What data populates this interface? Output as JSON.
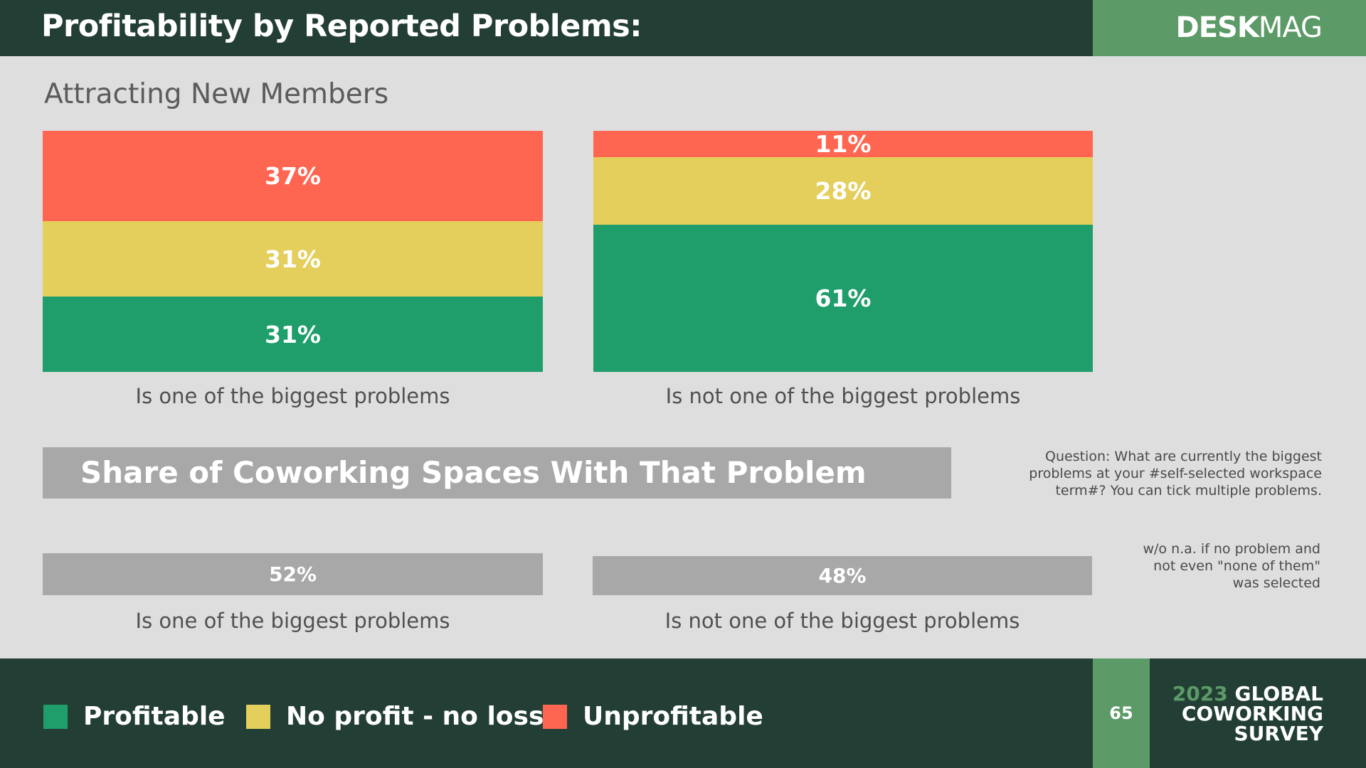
{
  "header": {
    "title": "Profitability by Reported Problems:",
    "brand_bold": "DESK",
    "brand_light": "MAG"
  },
  "section_title": "Attracting New Members",
  "chart_data": [
    {
      "type": "bar",
      "stacked": true,
      "categories": [
        "Is one of the biggest problems",
        "Is not one of the biggest problems"
      ],
      "series": [
        {
          "name": "Profitable",
          "values": [
            31,
            61
          ],
          "labels": [
            "31%",
            "61%"
          ]
        },
        {
          "name": "No profit - no loss",
          "values": [
            31,
            28
          ],
          "labels": [
            "31%",
            "28%"
          ]
        },
        {
          "name": "Unprofitable",
          "values": [
            37,
            11
          ],
          "labels": [
            "37%",
            "11%"
          ]
        }
      ],
      "title": "Attracting New Members"
    },
    {
      "type": "bar",
      "title": "Share of Coworking Spaces With That Problem",
      "categories": [
        "Is one of the biggest problems",
        "Is not one of the biggest problems"
      ],
      "values": [
        52,
        48
      ],
      "labels": [
        "52%",
        "48%"
      ]
    }
  ],
  "share_title": "Share of Coworking Spaces With That Problem",
  "question_note": [
    "Question: What are currently the biggest",
    "problems at your #self-selected workspace",
    "term#? You can tick multiple problems."
  ],
  "na_note": [
    "w/o n.a. if no problem and",
    "not even \"none of them\"",
    "was selected"
  ],
  "legend": [
    {
      "label": "Profitable",
      "color": "#1f9e6b"
    },
    {
      "label": "No profit - no loss",
      "color": "#e4cf5d"
    },
    {
      "label": "Unprofitable",
      "color": "#ff6652"
    }
  ],
  "footer": {
    "page_number": "65",
    "survey_year": "2023",
    "survey_line1": "GLOBAL",
    "survey_line2": "COWORKING",
    "survey_line3": "SURVEY"
  },
  "colors": {
    "profitable": "#1f9e6b",
    "neutral": "#e4cf5d",
    "unprofitable": "#ff6652",
    "dark_green": "#233f35",
    "brand_green": "#5c9b67",
    "gray": "#a8a8a8"
  }
}
